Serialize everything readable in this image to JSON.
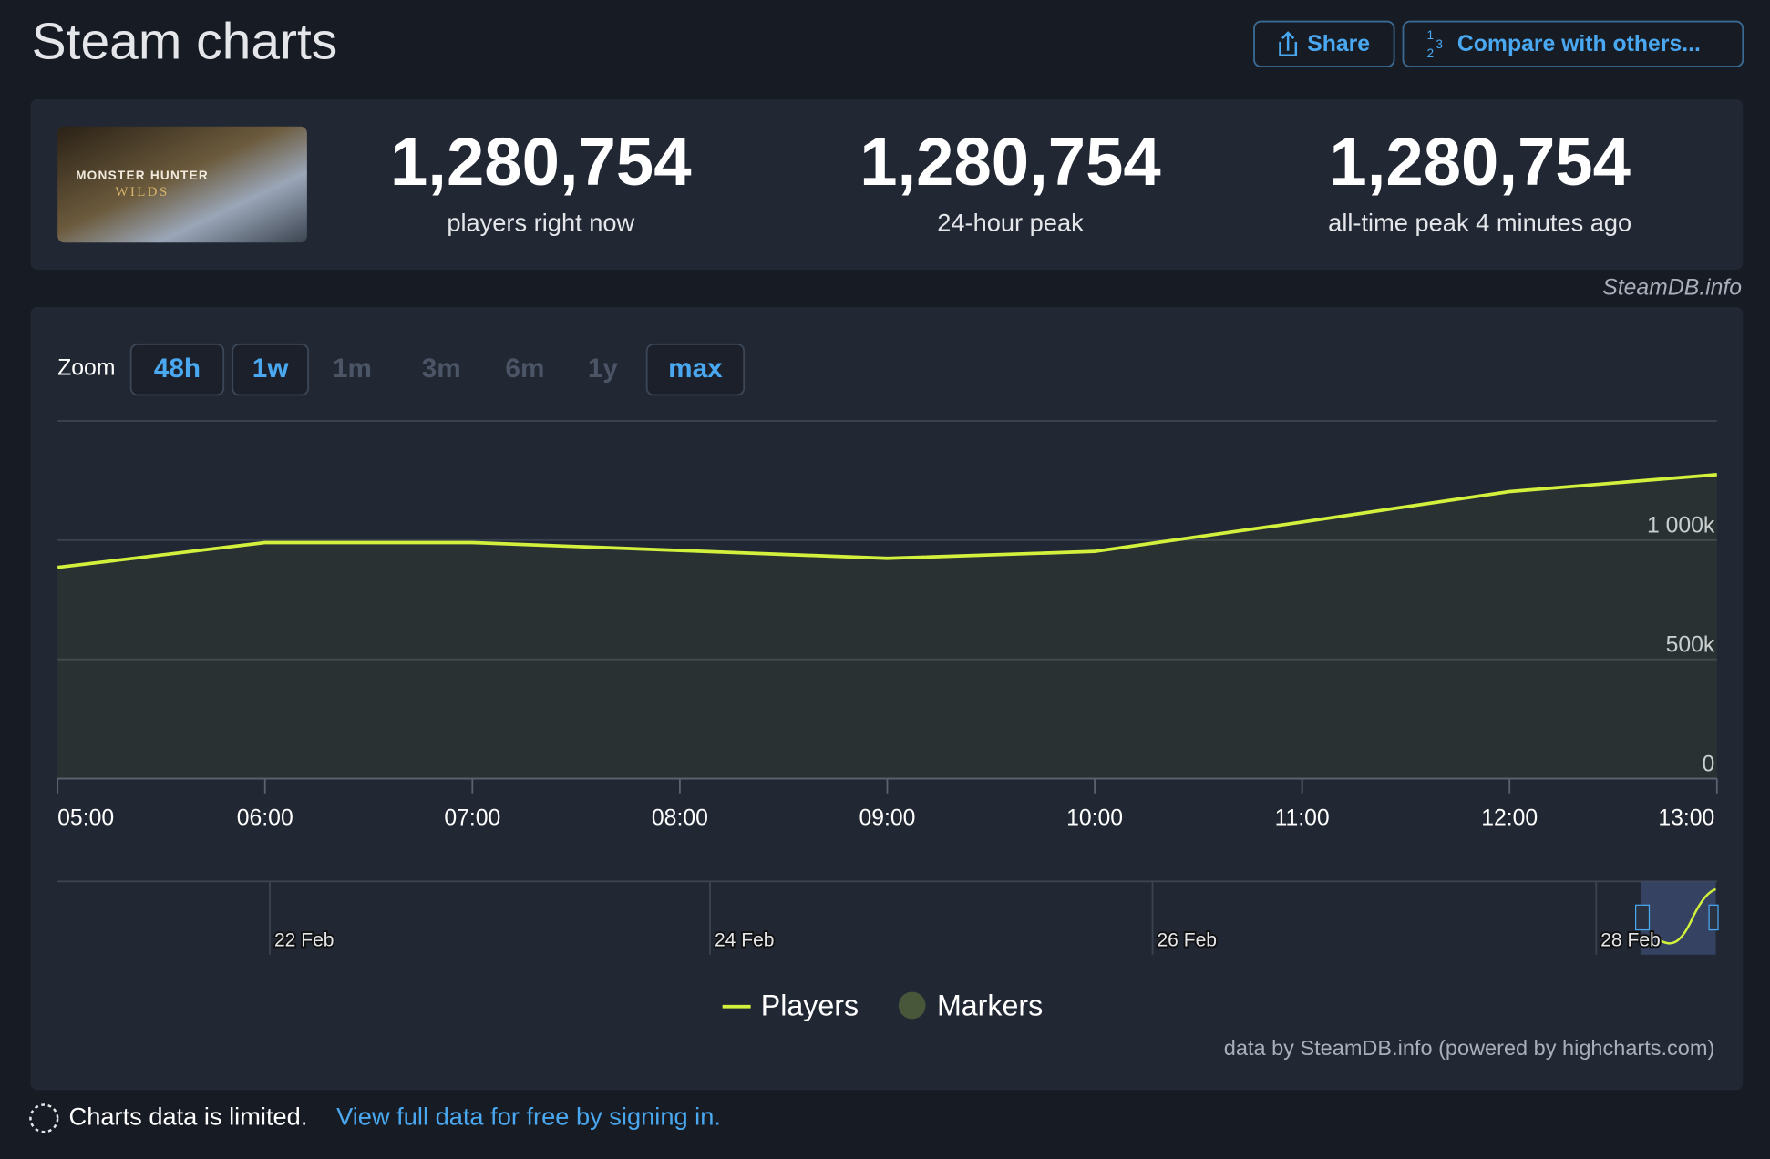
{
  "header": {
    "title": "Steam charts",
    "share": "Share",
    "compare": "Compare with others..."
  },
  "game": {
    "logo_top": "MONSTER HUNTER",
    "logo_bottom": "WILDS"
  },
  "stats": [
    {
      "value": "1,280,754",
      "label": "players right now"
    },
    {
      "value": "1,280,754",
      "label": "24-hour peak"
    },
    {
      "value": "1,280,754",
      "label": "all-time peak 4 minutes ago"
    }
  ],
  "source": "SteamDB.info",
  "zoom": {
    "label": "Zoom",
    "options": [
      "48h",
      "1w",
      "1m",
      "3m",
      "6m",
      "1y",
      "max"
    ]
  },
  "chart_data": {
    "type": "line",
    "categories": [
      "05:00",
      "06:00",
      "07:00",
      "08:00",
      "09:00",
      "10:00",
      "11:00",
      "12:00",
      "13:00"
    ],
    "series": [
      {
        "name": "Players",
        "color": "#d2f03c",
        "values": [
          886000,
          990000,
          990000,
          957000,
          924000,
          953000,
          1076000,
          1204000,
          1275000
        ]
      }
    ],
    "marker_series": {
      "name": "Markers",
      "color": "#48573a"
    },
    "ylim": [
      0,
      1500000
    ],
    "yticks": [
      0,
      {
        "value": 500000,
        "label": "500k"
      },
      {
        "value": 1000000,
        "label": "1 000k"
      }
    ],
    "grid": true,
    "navigator_labels": [
      "22 Feb",
      "24 Feb",
      "26 Feb",
      "28 Feb"
    ],
    "credit": "data by SteamDB.info (powered by highcharts.com)"
  },
  "footer": {
    "notice": "Charts data is limited.",
    "link": "View full data for free by signing in."
  }
}
